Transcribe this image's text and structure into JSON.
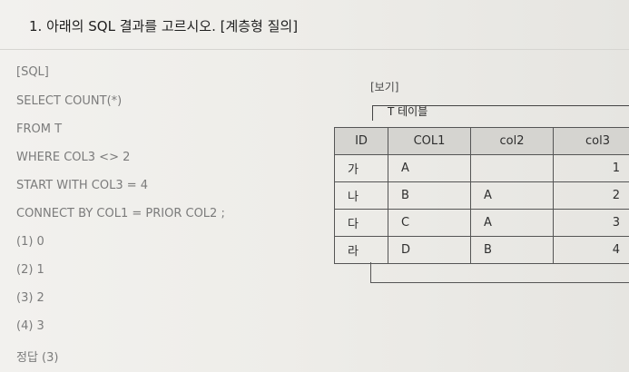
{
  "question": {
    "title": "1. 아래의 SQL 결과를 고르시오. [계층형 질의]"
  },
  "sql": {
    "lines": [
      "[SQL]",
      "SELECT COUNT(*)",
      "FROM T",
      "WHERE COL3 <> 2",
      "START WITH COL3 = 4",
      "CONNECT BY COL1 = PRIOR COL2 ;"
    ]
  },
  "options": [
    "(1) 0",
    "(2) 1",
    "(3) 2",
    "(4) 3"
  ],
  "answer": "정답 (3)",
  "bogi": {
    "label": "[보기]",
    "caption": "T 테이블",
    "table": {
      "headers": [
        "ID",
        "COL1",
        "col2",
        "col3"
      ],
      "rows": [
        [
          "가",
          "A",
          "",
          "1"
        ],
        [
          "나",
          "B",
          "A",
          "2"
        ],
        [
          "다",
          "C",
          "A",
          "3"
        ],
        [
          "라",
          "D",
          "B",
          "4"
        ]
      ]
    }
  }
}
